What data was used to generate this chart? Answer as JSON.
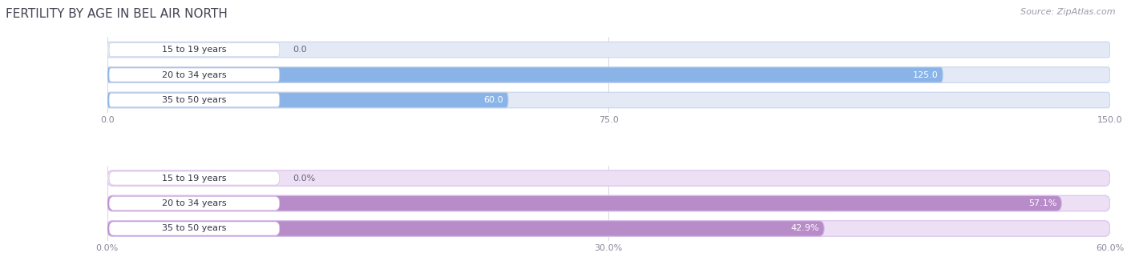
{
  "title": "FERTILITY BY AGE IN BEL AIR NORTH",
  "source": "Source: ZipAtlas.com",
  "top_chart": {
    "categories": [
      "15 to 19 years",
      "20 to 34 years",
      "35 to 50 years"
    ],
    "values": [
      0.0,
      125.0,
      60.0
    ],
    "bar_color": "#8ab4e8",
    "bar_bg_color": "#e4eaf5",
    "bar_border_color": "#c8d4ec",
    "label_bg_color": "#ffffff",
    "xlim": [
      0,
      150
    ],
    "xticks": [
      0.0,
      75.0,
      150.0
    ],
    "xtick_labels": [
      "0.0",
      "75.0",
      "150.0"
    ]
  },
  "bottom_chart": {
    "categories": [
      "15 to 19 years",
      "20 to 34 years",
      "35 to 50 years"
    ],
    "values": [
      0.0,
      57.1,
      42.9
    ],
    "bar_color": "#b88cc8",
    "bar_bg_color": "#ede0f5",
    "bar_border_color": "#d8c0e8",
    "label_bg_color": "#ffffff",
    "xlim": [
      0,
      60
    ],
    "xticks": [
      0.0,
      30.0,
      60.0
    ],
    "xtick_labels": [
      "0.0%",
      "30.0%",
      "60.0%"
    ]
  },
  "label_fontsize": 8,
  "value_fontsize": 8,
  "title_fontsize": 11,
  "source_fontsize": 8,
  "title_color": "#444455",
  "source_color": "#999aaa",
  "tick_color": "#888899",
  "value_color_inside": "#ffffff",
  "value_color_outside": "#666677"
}
